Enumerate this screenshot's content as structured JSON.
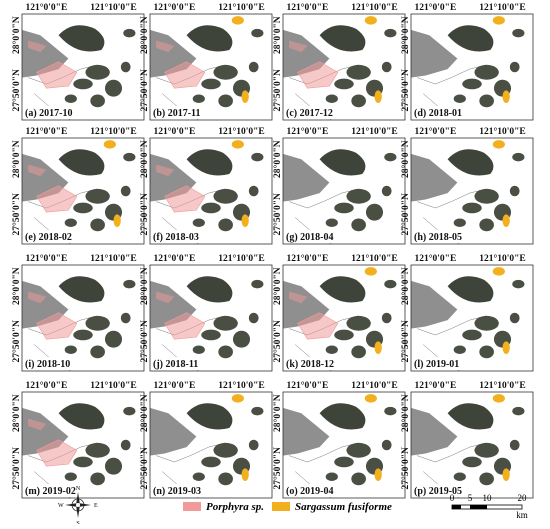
{
  "coordinates": {
    "lon_left": "121°0'0\"E",
    "lon_right": "121°10'0\"E",
    "lat_top": "28°0'0\"N",
    "lat_bottom": "27°50'0\"N"
  },
  "panels": [
    {
      "label": "(a) 2017-10"
    },
    {
      "label": "(b) 2017-11"
    },
    {
      "label": "(c) 2017-12"
    },
    {
      "label": "(d) 2018-01"
    },
    {
      "label": "(e) 2018-02"
    },
    {
      "label": "(f) 2018-03"
    },
    {
      "label": "(g) 2018-04"
    },
    {
      "label": "(h) 2018-05"
    },
    {
      "label": "(i) 2018-10"
    },
    {
      "label": "(j) 2018-11"
    },
    {
      "label": "(k) 2018-12"
    },
    {
      "label": "(l) 2019-01"
    },
    {
      "label": "(m) 2019-02"
    },
    {
      "label": "(n) 2019-03"
    },
    {
      "label": "(o) 2019-04"
    },
    {
      "label": "(p) 2019-05"
    }
  ],
  "legend": {
    "items": [
      {
        "name": "Porphyra sp.",
        "color": "#f09a9a"
      },
      {
        "name": "Sargassum fusiforme",
        "color": "#f2b01e"
      }
    ]
  },
  "compass": {
    "north": "N",
    "south": "S",
    "east": "E",
    "west": "W"
  },
  "scale_bar": {
    "ticks": [
      "0",
      "5",
      "10",
      "20"
    ],
    "unit": "km"
  }
}
